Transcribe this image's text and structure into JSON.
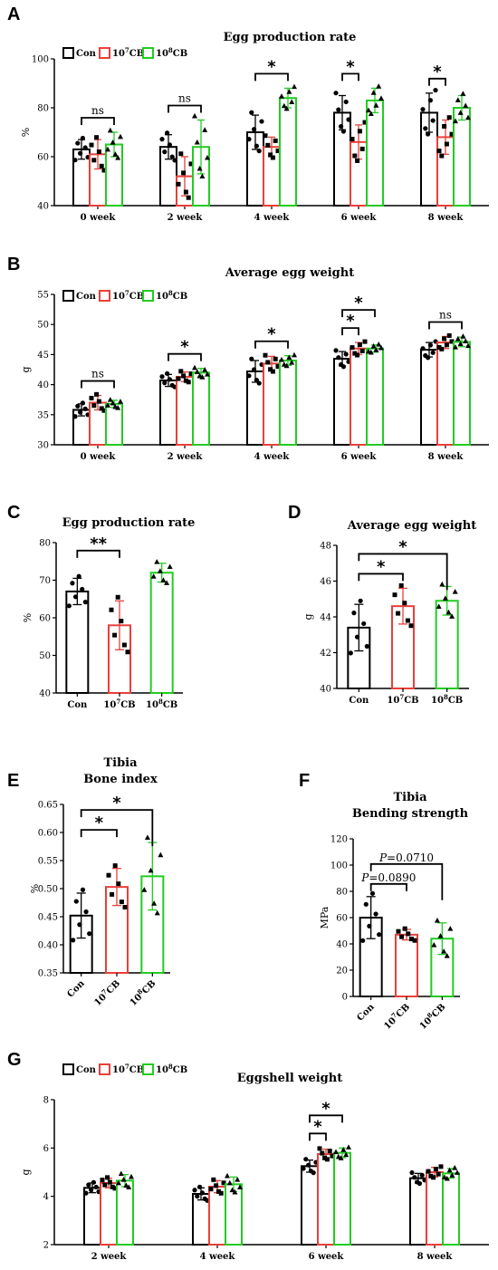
{
  "legend": [
    {
      "label": "Con"
    },
    {
      "label": "10",
      "sup": "7",
      "suffix": "CB"
    },
    {
      "label": "10",
      "sup": "8",
      "suffix": "CB"
    }
  ],
  "colors": {
    "con": "#000000",
    "cb7": "#e8403a",
    "cb8": "#22cc22"
  },
  "chart_data": [
    {
      "panel": "A",
      "type": "bar",
      "title": "Egg production rate",
      "ylabel": "%",
      "ylim": [
        40,
        100
      ],
      "yticks": [
        40,
        60,
        80,
        100
      ],
      "categories": [
        "0 week",
        "2 week",
        "4 week",
        "6 week",
        "8 week"
      ],
      "series": [
        {
          "name": "Con",
          "values": [
            63,
            64,
            70,
            78,
            78
          ],
          "err": [
            4,
            5,
            7,
            7,
            8
          ]
        },
        {
          "name": "10^7CB",
          "values": [
            61,
            52,
            64,
            66,
            68
          ],
          "err": [
            6,
            8,
            4,
            7,
            7
          ]
        },
        {
          "name": "10^8CB",
          "values": [
            65,
            64,
            84,
            83,
            80
          ],
          "err": [
            5,
            11,
            4,
            5,
            5
          ]
        }
      ],
      "annotations": [
        {
          "group": 0,
          "from": 0,
          "to": 2,
          "label": "ns"
        },
        {
          "group": 1,
          "from": 0,
          "to": 2,
          "label": "ns"
        },
        {
          "group": 2,
          "from": 0,
          "to": 2,
          "label": "*"
        },
        {
          "group": 3,
          "from": 0,
          "to": 1,
          "label": "*"
        },
        {
          "group": 4,
          "from": 0,
          "to": 1,
          "label": "*"
        }
      ]
    },
    {
      "panel": "B",
      "type": "bar",
      "title": "Average egg weight",
      "ylabel": "g",
      "ylim": [
        30,
        55
      ],
      "yticks": [
        30,
        35,
        40,
        45,
        50,
        55
      ],
      "categories": [
        "0 week",
        "2 week",
        "4 week",
        "6 week",
        "8 week"
      ],
      "series": [
        {
          "name": "Con",
          "values": [
            35.8,
            40.7,
            42.2,
            44.3,
            45.8
          ],
          "err": [
            1,
            1,
            1.8,
            1.2,
            1.2
          ]
        },
        {
          "name": "10^7CB",
          "values": [
            37.0,
            41.3,
            43.5,
            46.0,
            47.0
          ],
          "err": [
            1.2,
            0.8,
            1.2,
            1,
            1
          ]
        },
        {
          "name": "10^8CB",
          "values": [
            36.8,
            42.0,
            44.0,
            46.0,
            47.1
          ],
          "err": [
            0.6,
            0.7,
            0.8,
            0.6,
            0.8
          ]
        }
      ],
      "annotations": [
        {
          "group": 0,
          "from": 0,
          "to": 2,
          "label": "ns"
        },
        {
          "group": 1,
          "from": 0,
          "to": 2,
          "label": "*"
        },
        {
          "group": 2,
          "from": 0,
          "to": 2,
          "label": "*"
        },
        {
          "group": 3,
          "from": 0,
          "to": 1,
          "label": "*"
        },
        {
          "group": 3,
          "from": 0,
          "to": 2,
          "label": "*"
        },
        {
          "group": 4,
          "from": 0,
          "to": 2,
          "label": "ns"
        }
      ]
    },
    {
      "panel": "C",
      "type": "bar",
      "title": "Egg production rate",
      "ylabel": "%",
      "ylim": [
        40,
        80
      ],
      "yticks": [
        40,
        50,
        60,
        70,
        80
      ],
      "categories": [
        "Con",
        "10^7CB",
        "10^8CB"
      ],
      "values": [
        67,
        58,
        72
      ],
      "err": [
        3.5,
        6.5,
        2.5
      ],
      "annotations": [
        {
          "from": 0,
          "to": 1,
          "label": "**"
        }
      ]
    },
    {
      "panel": "D",
      "type": "bar",
      "title": "Average egg weight",
      "ylabel": "g",
      "ylim": [
        40,
        48
      ],
      "yticks": [
        40,
        42,
        44,
        46,
        48
      ],
      "categories": [
        "Con",
        "10^7CB",
        "10^8CB"
      ],
      "values": [
        43.4,
        44.6,
        44.9
      ],
      "err": [
        1.3,
        1,
        0.8
      ],
      "annotations": [
        {
          "from": 0,
          "to": 1,
          "label": "*"
        },
        {
          "from": 0,
          "to": 2,
          "label": "*"
        }
      ]
    },
    {
      "panel": "E",
      "type": "bar",
      "title": "Tibia",
      "subtitle": "Bone index",
      "ylabel": "%",
      "ylim": [
        0.35,
        0.65
      ],
      "yticks": [
        0.35,
        0.4,
        0.45,
        0.5,
        0.55,
        0.6,
        0.65
      ],
      "categories": [
        "Con",
        "10^7CB",
        "10^8CB"
      ],
      "values": [
        0.452,
        0.503,
        0.522
      ],
      "err": [
        0.04,
        0.033,
        0.06
      ],
      "annotations": [
        {
          "from": 0,
          "to": 1,
          "label": "*"
        },
        {
          "from": 0,
          "to": 2,
          "label": "*"
        }
      ]
    },
    {
      "panel": "F",
      "type": "bar",
      "title": "Tibia",
      "subtitle": "Bending strength",
      "ylabel": "MPa",
      "ylim": [
        0,
        120
      ],
      "yticks": [
        0,
        20,
        40,
        60,
        80,
        100,
        120
      ],
      "categories": [
        "Con",
        "10^7CB",
        "10^8CB"
      ],
      "values": [
        60,
        47,
        44
      ],
      "err": [
        16,
        4,
        12
      ],
      "annotations": [
        {
          "from": 0,
          "to": 1,
          "label": "P=0.0890"
        },
        {
          "from": 0,
          "to": 2,
          "label": "P=0.0710"
        }
      ]
    },
    {
      "panel": "G",
      "type": "bar",
      "title": "Eggshell weight",
      "ylabel": "g",
      "ylim": [
        2,
        8
      ],
      "yticks": [
        2,
        4,
        6,
        8
      ],
      "categories": [
        "2 week",
        "4 week",
        "6 week",
        "8 week"
      ],
      "series": [
        {
          "name": "Con",
          "values": [
            4.35,
            4.1,
            5.25,
            4.75
          ],
          "err": [
            0.2,
            0.25,
            0.25,
            0.2
          ]
        },
        {
          "name": "10^7CB",
          "values": [
            4.55,
            4.4,
            5.75,
            5.0
          ],
          "err": [
            0.2,
            0.25,
            0.2,
            0.2
          ]
        },
        {
          "name": "10^8CB",
          "values": [
            4.65,
            4.5,
            5.8,
            4.95
          ],
          "err": [
            0.25,
            0.3,
            0.2,
            0.2
          ]
        }
      ],
      "annotations": [
        {
          "group": 2,
          "from": 0,
          "to": 1,
          "label": "*"
        },
        {
          "group": 2,
          "from": 0,
          "to": 2,
          "label": "*"
        }
      ]
    }
  ]
}
